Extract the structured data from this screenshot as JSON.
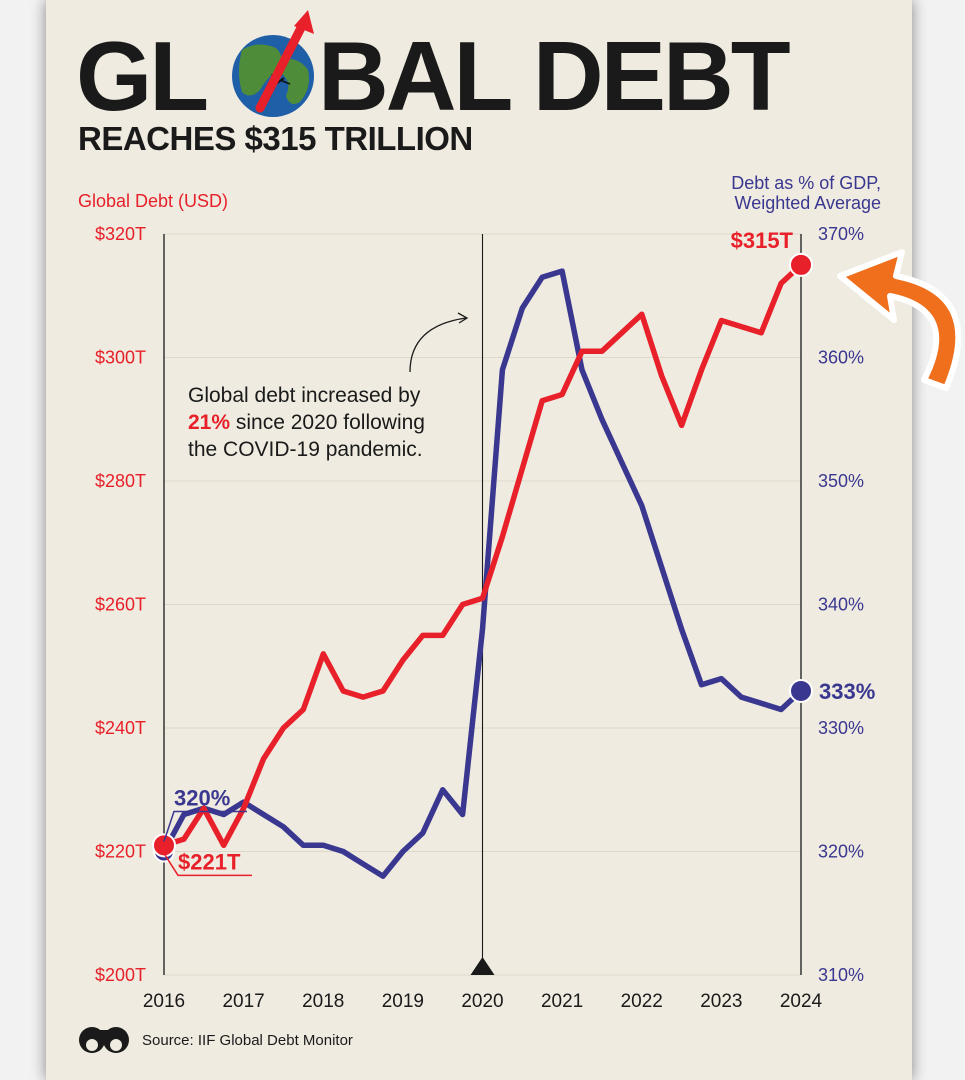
{
  "header": {
    "title_part1": "GL",
    "title_part2": "BAL DEBT",
    "subtitle": "REACHES $315 TRILLION"
  },
  "colors": {
    "background": "#efebe0",
    "debt_red": "#e8202a",
    "gdp_blue": "#3a3790",
    "text_dark": "#1a1a1a",
    "arrow_orange": "#ef6f1c",
    "globe_blue": "#1f5fa8",
    "globe_green": "#4f8c3a"
  },
  "icons": {
    "globe": "globe-with-rising-arrow-icon",
    "curved_arrow": "curved-arrow-icon",
    "brand_logo": "binoculars-logo-icon"
  },
  "annotation": {
    "line1": "Global debt increased by",
    "highlight": "21%",
    "line2_rest": " since 2020 following",
    "line3": "the COVID-19 pandemic."
  },
  "source": "Source: IIF Global Debt Monitor",
  "chart_data": {
    "type": "line",
    "x_range": [
      2016,
      2024
    ],
    "x_ticks": [
      "2016",
      "2017",
      "2018",
      "2019",
      "2020",
      "2021",
      "2022",
      "2023",
      "2024"
    ],
    "left_axis": {
      "title": "Global Debt (USD)",
      "range": [
        200,
        320
      ],
      "ticks": [
        "$200T",
        "$220T",
        "$240T",
        "$260T",
        "$280T",
        "$300T",
        "$320T"
      ]
    },
    "right_axis": {
      "title_line1": "Debt as % of GDP,",
      "title_line2": "Weighted Average",
      "range": [
        310,
        370
      ],
      "ticks": [
        "310%",
        "320%",
        "330%",
        "340%",
        "350%",
        "360%",
        "370%"
      ]
    },
    "markers": {
      "vertical_line_year": 2020
    },
    "series": [
      {
        "key": "debt",
        "axis": "left",
        "x": [
          2016.0,
          2016.25,
          2016.5,
          2016.75,
          2017.0,
          2017.25,
          2017.5,
          2017.75,
          2018.0,
          2018.25,
          2018.5,
          2018.75,
          2019.0,
          2019.25,
          2019.5,
          2019.75,
          2020.0,
          2020.25,
          2020.5,
          2020.75,
          2021.0,
          2021.25,
          2021.5,
          2021.75,
          2022.0,
          2022.25,
          2022.5,
          2022.75,
          2023.0,
          2023.25,
          2023.5,
          2023.75,
          2024.0
        ],
        "values": [
          221,
          222,
          227,
          221,
          227,
          235,
          240,
          243,
          252,
          246,
          245,
          246,
          251,
          255,
          255,
          260,
          261,
          271,
          282,
          293,
          294,
          301,
          301,
          304,
          307,
          297,
          289,
          298,
          306,
          305,
          304,
          312,
          315
        ],
        "start_label": "$221T",
        "end_label": "$315T"
      },
      {
        "key": "gdp",
        "axis": "right",
        "x": [
          2016.0,
          2016.25,
          2016.5,
          2016.75,
          2017.0,
          2017.25,
          2017.5,
          2017.75,
          2018.0,
          2018.25,
          2018.5,
          2018.75,
          2019.0,
          2019.25,
          2019.5,
          2019.75,
          2020.0,
          2020.25,
          2020.5,
          2020.75,
          2021.0,
          2021.25,
          2021.5,
          2021.75,
          2022.0,
          2022.25,
          2022.5,
          2022.75,
          2023.0,
          2023.25,
          2023.5,
          2023.75,
          2024.0
        ],
        "values": [
          320,
          323,
          323.5,
          323,
          324,
          323,
          322,
          320.5,
          320.5,
          320,
          319,
          318,
          320,
          321.5,
          325,
          323,
          338,
          359,
          364,
          366.5,
          367,
          359,
          355,
          351.5,
          348,
          343,
          338,
          333.5,
          334,
          332.5,
          332,
          331.5,
          333
        ],
        "start_label": "320%",
        "end_label": "333%"
      }
    ]
  }
}
